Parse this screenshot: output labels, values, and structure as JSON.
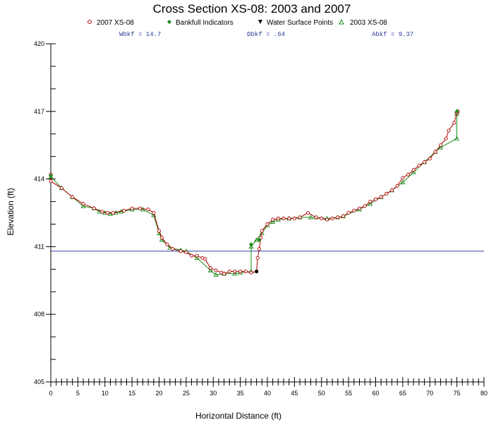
{
  "colors": {
    "series_2007": "#b00000",
    "series_2003": "#1a8a1a",
    "bankfull": "#1a8a1a",
    "water_surface": "#000000",
    "water_line": "#3040a0",
    "stats_text": "#2a3a9a"
  },
  "chart_data": {
    "type": "line",
    "title": "Cross Section XS-08: 2003 and 2007",
    "xlabel": "Horizontal Distance (ft)",
    "ylabel": "Elevation (ft)",
    "xlim": [
      0,
      80
    ],
    "ylim": [
      405,
      420
    ],
    "x_ticks": [
      "0",
      "5",
      "10",
      "15",
      "20",
      "25",
      "30",
      "35",
      "40",
      "45",
      "50",
      "55",
      "60",
      "65",
      "70",
      "75",
      "80"
    ],
    "y_ticks": [
      "405",
      "408",
      "411",
      "414",
      "417",
      "420"
    ],
    "grid": false,
    "legend_position": "top",
    "legend": [
      {
        "label": "2007 XS-08",
        "marker": "circle"
      },
      {
        "label": "Bankfull Indicators",
        "marker": "diamond"
      },
      {
        "label": "Water Surface Points",
        "marker": "triangle-down"
      },
      {
        "label": "2003 XS-08",
        "marker": "triangle-up"
      }
    ],
    "stats": [
      {
        "label": "Wbkf = 14.7"
      },
      {
        "label": "Dbkf = .64"
      },
      {
        "label": "Abkf = 9.37"
      }
    ],
    "water_surface_elevation": 410.8,
    "series": [
      {
        "name": "2007 XS-08",
        "points": [
          [
            0,
            414.2
          ],
          [
            0,
            413.9
          ],
          [
            2,
            413.6
          ],
          [
            4,
            413.2
          ],
          [
            6,
            412.9
          ],
          [
            8,
            412.7
          ],
          [
            9.5,
            412.55
          ],
          [
            10.5,
            412.5
          ],
          [
            11.5,
            412.5
          ],
          [
            13.5,
            412.6
          ],
          [
            15,
            412.7
          ],
          [
            16.5,
            412.7
          ],
          [
            18,
            412.65
          ],
          [
            19,
            412.5
          ],
          [
            20,
            411.7
          ],
          [
            20.5,
            411.4
          ],
          [
            21.5,
            411.1
          ],
          [
            22.5,
            410.9
          ],
          [
            24,
            410.8
          ],
          [
            25,
            410.75
          ],
          [
            26,
            410.6
          ],
          [
            27,
            410.6
          ],
          [
            28,
            410.5
          ],
          [
            28.5,
            410.45
          ],
          [
            29.5,
            410.05
          ],
          [
            30.5,
            409.95
          ],
          [
            31.5,
            409.85
          ],
          [
            32,
            409.8
          ],
          [
            33,
            409.9
          ],
          [
            34,
            409.9
          ],
          [
            35,
            409.9
          ],
          [
            36,
            409.9
          ],
          [
            37,
            409.85
          ],
          [
            38,
            409.9
          ],
          [
            38.2,
            410.5
          ],
          [
            38.5,
            410.9
          ],
          [
            38.8,
            411.4
          ],
          [
            39,
            411.7
          ],
          [
            40,
            412.0
          ],
          [
            41,
            412.2
          ],
          [
            42,
            412.25
          ],
          [
            43,
            412.25
          ],
          [
            44,
            412.25
          ],
          [
            45,
            412.25
          ],
          [
            46,
            412.3
          ],
          [
            47.5,
            412.5
          ],
          [
            49,
            412.3
          ],
          [
            50,
            412.25
          ],
          [
            51,
            412.2
          ],
          [
            52,
            412.25
          ],
          [
            53,
            412.3
          ],
          [
            54,
            412.35
          ],
          [
            55,
            412.5
          ],
          [
            56,
            412.6
          ],
          [
            57,
            412.7
          ],
          [
            58,
            412.8
          ],
          [
            59,
            413.0
          ],
          [
            60,
            413.1
          ],
          [
            61,
            413.2
          ],
          [
            62,
            413.35
          ],
          [
            63,
            413.5
          ],
          [
            64,
            413.7
          ],
          [
            65,
            414.05
          ],
          [
            66,
            414.2
          ],
          [
            67,
            414.4
          ],
          [
            68,
            414.6
          ],
          [
            69,
            414.75
          ],
          [
            70,
            414.9
          ],
          [
            71,
            415.2
          ],
          [
            72,
            415.5
          ],
          [
            73,
            415.8
          ],
          [
            73.5,
            416.15
          ],
          [
            74.5,
            416.5
          ],
          [
            75,
            416.95
          ],
          [
            75.2,
            417.0
          ]
        ]
      },
      {
        "name": "2003 XS-08",
        "points": [
          [
            0,
            414.1
          ],
          [
            2,
            413.6
          ],
          [
            4,
            413.2
          ],
          [
            6,
            412.8
          ],
          [
            8,
            412.7
          ],
          [
            9,
            412.55
          ],
          [
            10,
            412.5
          ],
          [
            11,
            412.45
          ],
          [
            12,
            412.5
          ],
          [
            13,
            412.55
          ],
          [
            15,
            412.65
          ],
          [
            17,
            412.65
          ],
          [
            19,
            412.4
          ],
          [
            20,
            411.6
          ],
          [
            20.5,
            411.3
          ],
          [
            22,
            410.95
          ],
          [
            24,
            410.85
          ],
          [
            25,
            410.8
          ],
          [
            27,
            410.5
          ],
          [
            29.5,
            409.95
          ],
          [
            30.5,
            409.75
          ],
          [
            32,
            409.8
          ],
          [
            34,
            409.8
          ],
          [
            35,
            409.85
          ],
          [
            37,
            409.9
          ],
          [
            37,
            411.0
          ],
          [
            38,
            411.3
          ],
          [
            39,
            411.6
          ],
          [
            40,
            411.95
          ],
          [
            41,
            412.1
          ],
          [
            42,
            412.2
          ],
          [
            44,
            412.25
          ],
          [
            46,
            412.3
          ],
          [
            48,
            412.3
          ],
          [
            49,
            412.3
          ],
          [
            51,
            412.25
          ],
          [
            53,
            412.3
          ],
          [
            54,
            412.35
          ],
          [
            57,
            412.65
          ],
          [
            59,
            412.9
          ],
          [
            61,
            413.2
          ],
          [
            63,
            413.5
          ],
          [
            65,
            413.85
          ],
          [
            67,
            414.3
          ],
          [
            69,
            414.75
          ],
          [
            71,
            415.2
          ],
          [
            72,
            415.4
          ],
          [
            75,
            415.8
          ],
          [
            75,
            416.9
          ],
          [
            75,
            417.0
          ]
        ]
      },
      {
        "name": "Bankfull Indicators",
        "points": [
          [
            0,
            414.15
          ],
          [
            37,
            411.1
          ],
          [
            38.5,
            411.3
          ],
          [
            75,
            417.0
          ]
        ]
      },
      {
        "name": "Water Surface Points",
        "points": [
          [
            38,
            409.9
          ]
        ]
      }
    ]
  }
}
